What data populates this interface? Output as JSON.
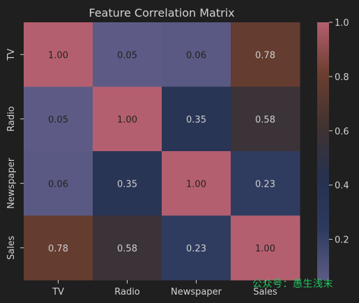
{
  "chart_data": {
    "type": "heatmap",
    "title": "Feature Correlation Matrix",
    "x_categories": [
      "TV",
      "Radio",
      "Newspaper",
      "Sales"
    ],
    "y_categories": [
      "TV",
      "Radio",
      "Newspaper",
      "Sales"
    ],
    "values": [
      [
        1.0,
        0.05,
        0.06,
        0.78
      ],
      [
        0.05,
        1.0,
        0.35,
        0.58
      ],
      [
        0.06,
        0.35,
        1.0,
        0.23
      ],
      [
        0.78,
        0.58,
        0.23,
        1.0
      ]
    ],
    "value_format": "2 decimals",
    "colorbar": {
      "range": [
        0.05,
        1.0
      ],
      "ticks": [
        0.2,
        0.4,
        0.6,
        0.8,
        1.0
      ],
      "tick_labels": [
        "0.2",
        "0.4",
        "0.6",
        "0.8",
        "1.0"
      ]
    },
    "colormap": [
      "#5d5b85",
      "#2c3a5e",
      "#26314f",
      "#413330",
      "#6b3e30",
      "#b45f6f"
    ],
    "colors": {
      "background": "#1f1f1f",
      "text": "#d3d3d3",
      "cell_text_light_bg": "#222222",
      "cell_text_dark_bg": "#d0d0d0"
    }
  },
  "watermark": {
    "text": "公众号：愚生浅末",
    "color": "#22c55e"
  }
}
